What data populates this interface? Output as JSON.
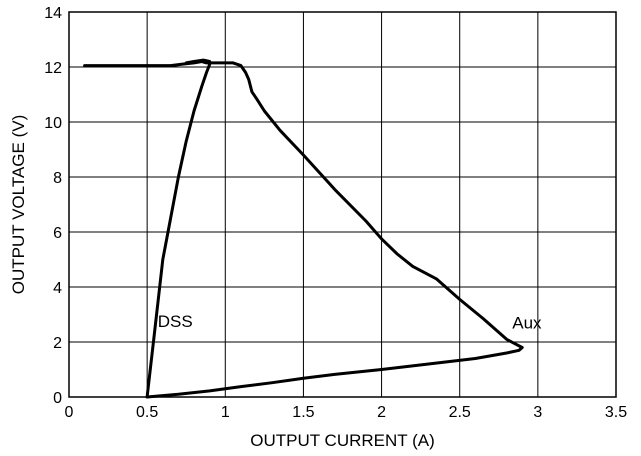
{
  "chart_data": {
    "type": "line",
    "title": "",
    "xlabel": "OUTPUT CURRENT (A)",
    "ylabel": "OUTPUT VOLTAGE (V)",
    "xlim": [
      0,
      3.5
    ],
    "ylim": [
      0,
      14
    ],
    "xticks": [
      0,
      0.5,
      1,
      1.5,
      2,
      2.5,
      3,
      3.5
    ],
    "xtick_labels": [
      "0",
      "0.5",
      "1",
      "1.5",
      "2",
      "2.5",
      "3",
      "3.5"
    ],
    "yticks": [
      0,
      2,
      4,
      6,
      8,
      10,
      12,
      14
    ],
    "ytick_labels": [
      "0",
      "2",
      "4",
      "6",
      "8",
      "10",
      "12",
      "14"
    ],
    "grid": true,
    "legend": "none",
    "series": [
      {
        "name": "Aux",
        "label_at": [
          2.93,
          2.5
        ],
        "x": [
          0.1,
          0.5,
          0.65,
          0.72,
          0.8,
          0.85,
          0.88,
          0.9,
          0.93,
          1.0,
          1.05,
          1.1,
          1.13,
          1.15,
          1.17,
          1.2,
          1.25,
          1.35,
          1.5,
          1.7,
          1.9,
          2.0,
          2.1,
          2.2,
          2.35,
          2.5,
          2.65,
          2.75,
          2.8,
          2.85,
          2.9,
          2.88,
          2.8,
          2.6,
          2.3,
          2.0,
          1.7,
          1.5,
          1.3,
          1.1,
          0.9,
          0.7,
          0.5
        ],
        "y": [
          12.05,
          12.05,
          12.05,
          12.1,
          12.15,
          12.2,
          12.15,
          12.15,
          12.15,
          12.15,
          12.15,
          12.05,
          11.8,
          11.55,
          11.1,
          10.85,
          10.4,
          9.7,
          8.8,
          7.55,
          6.4,
          5.75,
          5.2,
          4.75,
          4.3,
          3.55,
          2.85,
          2.35,
          2.1,
          1.95,
          1.8,
          1.7,
          1.6,
          1.4,
          1.2,
          1.0,
          0.82,
          0.68,
          0.52,
          0.38,
          0.22,
          0.1,
          0.0
        ]
      },
      {
        "name": "DSS",
        "label_at": [
          0.68,
          2.55
        ],
        "x": [
          0.5,
          0.55,
          0.6,
          0.65,
          0.7,
          0.75,
          0.8,
          0.85,
          0.88,
          0.9,
          0.9,
          0.86,
          0.8,
          0.75
        ],
        "y": [
          0.0,
          2.5,
          5.0,
          6.5,
          8.0,
          9.3,
          10.4,
          11.3,
          11.8,
          12.1,
          12.2,
          12.25,
          12.2,
          12.15
        ]
      }
    ]
  }
}
